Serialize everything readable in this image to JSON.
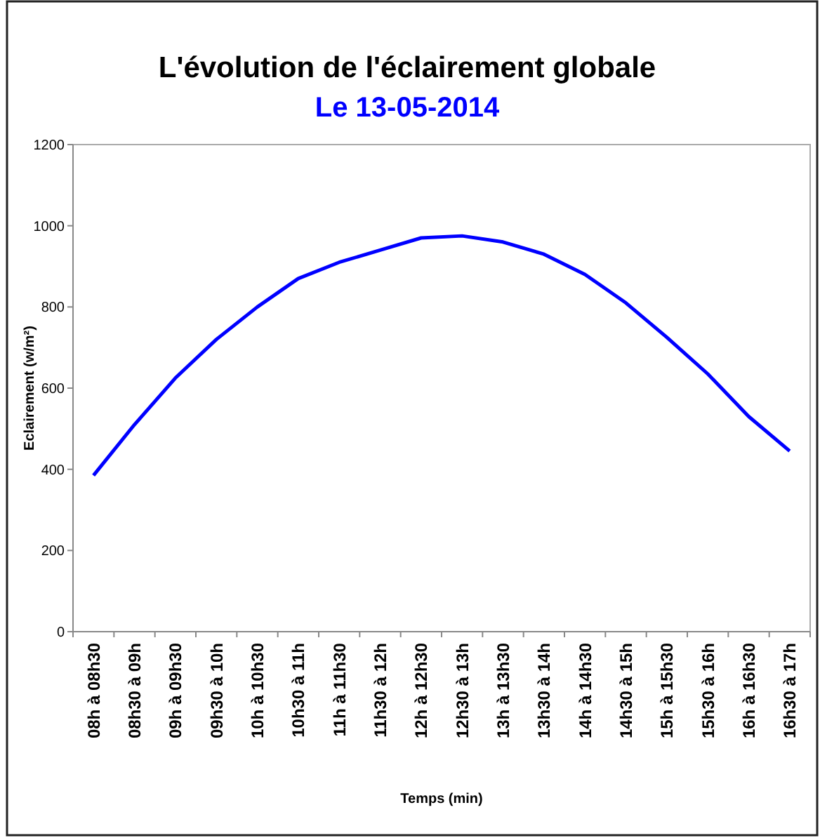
{
  "chart_data": {
    "type": "line",
    "title": "L'évolution de l'éclairement globale",
    "subtitle": "Le 13-05-2014",
    "xlabel": "Temps (min)",
    "ylabel": "Eclairement (w/m²)",
    "categories": [
      "08h à 08h30",
      "08h30 à 09h",
      "09h à 09h30",
      "09h30 à 10h",
      "10h à 10h30",
      "10h30 à 11h",
      "11h à 11h30",
      "11h30 à 12h",
      "12h à 12h30",
      "12h30 à 13h",
      "13h à 13h30",
      "13h30 à 14h",
      "14h à 14h30",
      "14h30 à 15h",
      "15h à 15h30",
      "15h30 à 16h",
      "16h à 16h30",
      "16h30 à 17h"
    ],
    "series": [
      {
        "color": "#0000ff",
        "values": [
          385,
          510,
          625,
          720,
          800,
          870,
          910,
          940,
          970,
          975,
          960,
          930,
          880,
          810,
          725,
          635,
          530,
          445
        ]
      }
    ],
    "ylim": [
      0,
      1200
    ],
    "yticks": [
      0,
      200,
      400,
      600,
      800,
      1000,
      1200
    ],
    "grid": false,
    "marker": "none",
    "line_style": "solid"
  }
}
